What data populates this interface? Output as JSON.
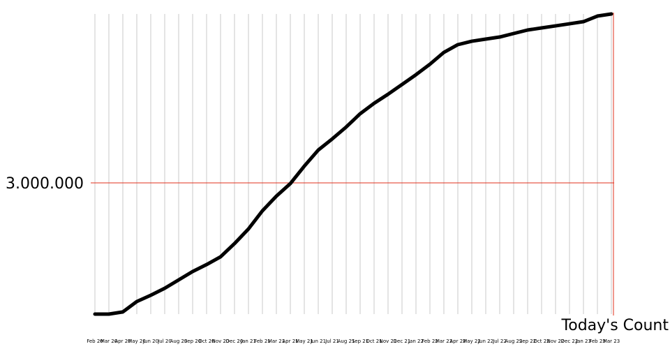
{
  "chart_data": {
    "type": "line",
    "annotation": "Today's Count",
    "categories": [
      "Feb 20",
      "Mar 20",
      "Apr 20",
      "May 20",
      "Jun 20",
      "Jul 20",
      "Aug 20",
      "Sep 20",
      "Oct 20",
      "Nov 20",
      "Dec 20",
      "Jan 21",
      "Feb 21",
      "Mar 21",
      "Apr 21",
      "May 21",
      "Jun 21",
      "Jul 21",
      "Aug 21",
      "Sep 21",
      "Oct 21",
      "Nov 21",
      "Dec 21",
      "Jan 22",
      "Feb 22",
      "Mar 22",
      "Apr 22",
      "May 22",
      "Jun 22",
      "Jul 22",
      "Aug 22",
      "Sep 22",
      "Oct 22",
      "Nov 22",
      "Dec 22",
      "Jan 23",
      "Feb 23",
      "Mar 23"
    ],
    "values": [
      0,
      0,
      50000,
      287000,
      431000,
      590000,
      782000,
      973000,
      1133000,
      1309000,
      1612000,
      1947000,
      2362000,
      2697000,
      2984000,
      3383000,
      3750000,
      4005000,
      4277000,
      4580000,
      4819000,
      5027000,
      5250000,
      5473000,
      5713000,
      5984000,
      6160000,
      6239000,
      6287000,
      6335000,
      6415000,
      6495000,
      6543000,
      6590000,
      6638000,
      6686000,
      6814000,
      6862000
    ],
    "color": "#000000",
    "grid_color": "#c8c8c8",
    "reference_color": "#e0301e",
    "ylim": [
      0,
      6862000
    ],
    "yticks": [
      {
        "value": 3000000,
        "label": "3.000.000"
      }
    ],
    "grid": true
  }
}
